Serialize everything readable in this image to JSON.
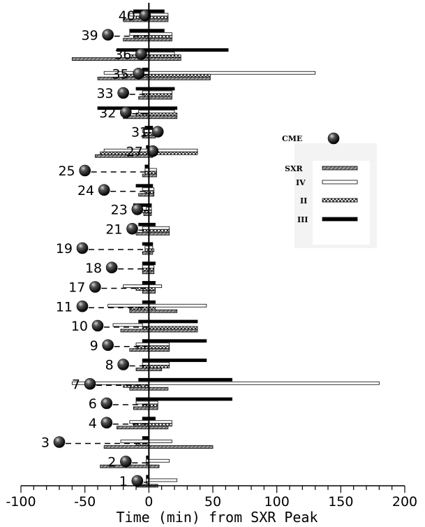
{
  "chart_data": {
    "type": "bar",
    "orientation": "horizontal",
    "title": "",
    "xlabel": "Time (min) from SXR Peak",
    "ylabel": "",
    "xlim": [
      -100,
      200
    ],
    "xticks": [
      -100,
      -50,
      0,
      50,
      100,
      150,
      200
    ],
    "grid": false,
    "legend_position": "right",
    "legend": {
      "cme": "CME",
      "series": [
        {
          "key": "SXR",
          "label": "SXR"
        },
        {
          "key": "IV",
          "label": "IV"
        },
        {
          "key": "II",
          "label": "II"
        },
        {
          "key": "III",
          "label": "III"
        }
      ]
    },
    "colors": {
      "SXR": "#808080",
      "IV": "#ffffff",
      "II": "#ffffff",
      "III": "#000000"
    },
    "events": [
      {
        "id": "40",
        "cme": -3,
        "SXR": [
          -20,
          15
        ],
        "IV": [
          -15,
          15
        ],
        "II": [
          -10,
          15
        ],
        "III": [
          -12,
          12
        ]
      },
      {
        "id": "39",
        "cme": -32,
        "SXR": [
          -20,
          18
        ],
        "IV": [
          -15,
          18
        ],
        "II": [
          -12,
          18
        ],
        "III": [
          -15,
          12
        ]
      },
      {
        "id": "36",
        "cme": -6,
        "SXR": [
          -60,
          25
        ],
        "IV": [
          -10,
          20
        ],
        "II": [
          -15,
          25
        ],
        "III": [
          -25,
          62
        ]
      },
      {
        "id": "35",
        "cme": -8,
        "SXR": [
          -40,
          48
        ],
        "IV": [
          -35,
          130
        ],
        "II": [
          -20,
          48
        ],
        "III": [
          -5,
          0
        ]
      },
      {
        "id": "33",
        "cme": -20,
        "SXR": [
          -8,
          18
        ],
        "IV": [
          -5,
          18
        ],
        "II": [
          -5,
          18
        ],
        "III": [
          -10,
          20
        ]
      },
      {
        "id": "32",
        "cme": -18,
        "SXR": [
          -20,
          22
        ],
        "IV": [
          -8,
          20
        ],
        "II": [
          -10,
          22
        ],
        "III": [
          -40,
          22
        ]
      },
      {
        "id": "31",
        "cme": 7,
        "SXR": [
          -5,
          5
        ],
        "IV": [
          -5,
          8
        ],
        "II": [
          -3,
          5
        ],
        "III": [
          -3,
          3
        ]
      },
      {
        "id": "27",
        "cme": 3,
        "SXR": [
          -42,
          3
        ],
        "IV": [
          -35,
          38
        ],
        "II": [
          -38,
          38
        ],
        "III": [
          -2,
          0
        ]
      },
      {
        "id": "25",
        "cme": -50,
        "SXR": [
          -5,
          6
        ],
        "IV": [
          -3,
          6
        ],
        "II": [
          -3,
          6
        ],
        "III": [
          -3,
          0
        ]
      },
      {
        "id": "24",
        "cme": -35,
        "SXR": [
          -8,
          4
        ],
        "IV": [
          -5,
          4
        ],
        "II": [
          -3,
          4
        ],
        "III": [
          -10,
          3
        ]
      },
      {
        "id": "23",
        "cme": -9,
        "SXR": [
          -4,
          2
        ],
        "IV": [
          -2,
          2
        ],
        "II": [
          -5,
          2
        ],
        "III": [
          -12,
          2
        ]
      },
      {
        "id": "21",
        "cme": -13,
        "SXR": [
          -10,
          16
        ],
        "IV": [
          -5,
          16
        ],
        "II": [
          -5,
          16
        ],
        "III": [
          -8,
          5
        ]
      },
      {
        "id": "19",
        "cme": -52,
        "SXR": [
          -5,
          3
        ],
        "IV": [
          -3,
          3
        ],
        "II": [
          -3,
          4
        ],
        "III": [
          -5,
          3
        ]
      },
      {
        "id": "18",
        "cme": -29,
        "SXR": [
          -5,
          4
        ],
        "IV": [
          -5,
          4
        ],
        "II": [
          -5,
          4
        ],
        "III": [
          -5,
          5
        ]
      },
      {
        "id": "17",
        "cme": -42,
        "SXR": [
          -5,
          5
        ],
        "IV": [
          -20,
          10
        ],
        "II": [
          -10,
          5
        ],
        "III": [
          -5,
          5
        ]
      },
      {
        "id": "11",
        "cme": -52,
        "SXR": [
          -15,
          22
        ],
        "IV": [
          -32,
          45
        ],
        "II": [
          -15,
          5
        ],
        "III": [
          -5,
          5
        ]
      },
      {
        "id": "10",
        "cme": -40,
        "SXR": [
          -22,
          38
        ],
        "IV": [
          -28,
          -5
        ],
        "II": [
          -5,
          38
        ],
        "III": [
          -8,
          38
        ]
      },
      {
        "id": "9",
        "cme": -32,
        "SXR": [
          -15,
          16
        ],
        "IV": [
          -10,
          16
        ],
        "II": [
          -10,
          16
        ],
        "III": [
          -5,
          45
        ]
      },
      {
        "id": "8",
        "cme": -20,
        "SXR": [
          -10,
          10
        ],
        "IV": [
          -5,
          16
        ],
        "II": [
          -5,
          16
        ],
        "III": [
          -5,
          45
        ]
      },
      {
        "id": "7",
        "cme": -46,
        "SXR": [
          -15,
          15
        ],
        "IV": [
          -60,
          180
        ],
        "II": [
          -20,
          0
        ],
        "III": [
          -8,
          65
        ]
      },
      {
        "id": "6",
        "cme": -33,
        "SXR": [
          -12,
          7
        ],
        "IV": [
          -10,
          7
        ],
        "II": [
          -5,
          7
        ],
        "III": [
          -10,
          65
        ]
      },
      {
        "id": "4",
        "cme": -33,
        "SXR": [
          -25,
          15
        ],
        "IV": [
          -15,
          18
        ],
        "II": [
          -12,
          18
        ],
        "III": [
          -5,
          5
        ]
      },
      {
        "id": "3",
        "cme": -70,
        "SXR": [
          -35,
          50
        ],
        "IV": [
          -22,
          18
        ],
        "II": [
          -10,
          0
        ],
        "III": [
          -5,
          0
        ]
      },
      {
        "id": "2",
        "cme": -18,
        "SXR": [
          -38,
          8
        ],
        "IV": [
          -2,
          16
        ],
        "II": [
          -2,
          0
        ],
        "III": [
          -2,
          0
        ]
      },
      {
        "id": "1",
        "cme": -9,
        "SXR": [
          -10,
          7
        ],
        "IV": [
          -2,
          22
        ],
        "II": [
          -2,
          0
        ],
        "III": [
          -2,
          0
        ]
      }
    ]
  }
}
